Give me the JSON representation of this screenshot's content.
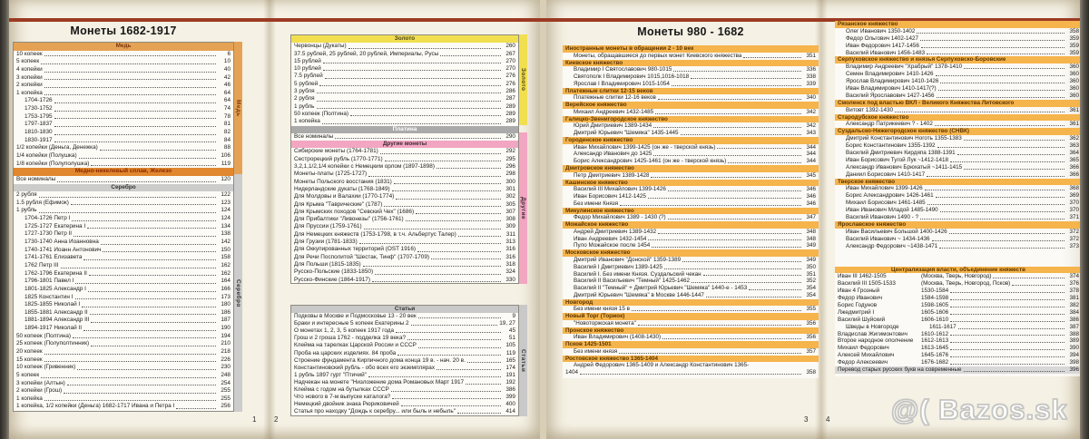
{
  "colors": {
    "copper": "#e5a254",
    "copper_iron": "#e0872f",
    "silver": "#cccccc",
    "gold": "#f1df4f",
    "platinum": "#aaaaaa",
    "other_coins_pink": "#f2a6c2",
    "articles_gray": "#c9c9c9",
    "principality_orange": "#f5b44c",
    "red_top_line": "#9c3a23"
  },
  "watermark": "@( Bazos.sk",
  "footer": {
    "p1": "1",
    "p2": "2",
    "p3": "3",
    "p4": "4"
  },
  "strips": {
    "col1_copper": "Медь",
    "col1_silver": "Серебро",
    "col2_gold": "Золото",
    "col2_other": "Другие",
    "col2_articles": "Статьи"
  },
  "page_left": {
    "title": "Монеты 1682-1917",
    "column1": {
      "items": [
        {
          "h": "Медь",
          "s": "copper"
        },
        {
          "t": "10 копеек",
          "p": "6"
        },
        {
          "t": "5 копеек",
          "p": "10"
        },
        {
          "t": "4 копейки",
          "p": "40"
        },
        {
          "t": "3 копейки",
          "p": "42"
        },
        {
          "t": "2 копейки",
          "p": "46"
        },
        {
          "t": "1 копейка",
          "p": "64"
        },
        {
          "t": "1704-1726",
          "p": "64",
          "i": 1
        },
        {
          "t": "1730-1752",
          "p": "74",
          "i": 1
        },
        {
          "t": "1753-1795",
          "p": "78",
          "i": 1
        },
        {
          "t": "1797-1837",
          "p": "81",
          "i": 1
        },
        {
          "t": "1810-1830",
          "p": "82",
          "i": 1
        },
        {
          "t": "1830-1917",
          "p": "84",
          "i": 1
        },
        {
          "t": "1/2 копейки (Деньга, Денежка)",
          "p": "88"
        },
        {
          "t": "1/4 копейки (Полушка)",
          "p": "106"
        },
        {
          "t": "1/8 копейки (Полуполушка)",
          "p": "119"
        },
        {
          "h": "Медно-никелевый сплав, Железо",
          "s": "copper2"
        },
        {
          "t": "Все номиналы",
          "p": "120"
        },
        {
          "h": "Серебро",
          "s": "silver"
        },
        {
          "t": "2 рубля",
          "p": "122"
        },
        {
          "t": "1.5 рубля (Ефимок)",
          "p": "123"
        },
        {
          "t": "1 рубль",
          "p": "124"
        },
        {
          "t": "1704-1726 Петр I",
          "p": "124",
          "i": 1
        },
        {
          "t": "1725-1727 Екатерина I",
          "p": "134",
          "i": 1
        },
        {
          "t": "1727-1730 Петр II",
          "p": "138",
          "i": 1
        },
        {
          "t": "1730-1740 Анна Иоанновна",
          "p": "142",
          "i": 1
        },
        {
          "t": "1740-1741 Иоанн Антонович",
          "p": "150",
          "i": 1
        },
        {
          "t": "1741-1761 Елизавета",
          "p": "158",
          "i": 1
        },
        {
          "t": "1762 Петр III",
          "p": "162",
          "i": 1
        },
        {
          "t": "1762-1796 Екатерина II",
          "p": "162",
          "i": 1
        },
        {
          "t": "1796-1801 Павел I",
          "p": "164",
          "i": 1
        },
        {
          "t": "1801-1825 Александр I",
          "p": "166",
          "i": 1
        },
        {
          "t": "1825 Константин I",
          "p": "173",
          "i": 1
        },
        {
          "t": "1825-1855 Николай I",
          "p": "180",
          "i": 1
        },
        {
          "t": "1855-1881 Александр II",
          "p": "186",
          "i": 1
        },
        {
          "t": "1881-1894 Александр III",
          "p": "187",
          "i": 1
        },
        {
          "t": "1894-1917 Николай II",
          "p": "190",
          "i": 1
        },
        {
          "t": "50 копеек (Полтина)",
          "p": "194"
        },
        {
          "t": "25 копеек (Полуполтинник)",
          "p": "210"
        },
        {
          "t": "20 копеек",
          "p": "218"
        },
        {
          "t": "15 копеек",
          "p": "226"
        },
        {
          "t": "10 копеек (Гривенник)",
          "p": "230"
        },
        {
          "t": "5 копеек",
          "p": "248"
        },
        {
          "t": "3 копейки (Алтын)",
          "p": "254"
        },
        {
          "t": "2 копейки (Грош)",
          "p": "255"
        },
        {
          "t": "1 копейка",
          "p": "255"
        },
        {
          "t": "1 копейка, 1/2 копейки (Деньга) 1682-1717 Ивана и Петра I",
          "p": "256"
        }
      ]
    },
    "column2a": {
      "items": [
        {
          "h": "Золото",
          "s": "gold"
        },
        {
          "t": "Червонцы (Дукаты)",
          "p": "260"
        },
        {
          "t": "37.5 рублей, 25 рублей, 20 рублей, Империалы, Русы",
          "p": "267"
        },
        {
          "t": "15 рублей",
          "p": "270"
        },
        {
          "t": "10 рублей",
          "p": "270"
        },
        {
          "t": "7.5 рублей",
          "p": "276"
        },
        {
          "t": "5 рублей",
          "p": "276"
        },
        {
          "t": "3 рубля",
          "p": "286"
        },
        {
          "t": "2 рубля",
          "p": "287"
        },
        {
          "t": "1 рубль",
          "p": "289"
        },
        {
          "t": "50 копеек (Полтина)",
          "p": "289"
        },
        {
          "t": "1 копейка",
          "p": "289"
        },
        {
          "h": "Платина",
          "s": "plat"
        },
        {
          "t": "Все номиналы",
          "p": "290"
        },
        {
          "h": "Другие монеты",
          "s": "pink"
        },
        {
          "t": "Сибирские монеты (1764-1781)",
          "p": "292"
        },
        {
          "t": "Сестрорецкий рубль (1770-1771)",
          "p": "295"
        },
        {
          "t": "3,2,1,1/2,1/4 копейки с Немецким орлом (1897-1898)",
          "p": "296"
        },
        {
          "t": "Монеты-платы (1725-1727)",
          "p": "298"
        },
        {
          "t": "Монеты Польского восстания (1831)",
          "p": "300"
        },
        {
          "t": "Нидерландские дукаты (1768-1849)",
          "p": "301"
        },
        {
          "t": "Для Молдовы и Валахии (1770-1774)",
          "p": "302"
        },
        {
          "t": "Для Крыма \"Таврические\" (1787)",
          "p": "305"
        },
        {
          "t": "Для Крымских походов \"Севский Чех\" (1686)",
          "p": "307"
        },
        {
          "t": "Для Прибалтики \"Ливонезы\" (1756-1761)",
          "p": "308"
        },
        {
          "t": "Для Пруссии (1759-1761)",
          "p": "309"
        },
        {
          "t": "Для Немецких княжеств (1753-1798, в т.ч. Альбертус Талер)",
          "p": "311"
        },
        {
          "t": "Для Грузии (1781-1833)",
          "p": "313"
        },
        {
          "t": "Для Оккупированных территорий (OST 1916)",
          "p": "316"
        },
        {
          "t": "Для Речи Посполитой \"Шестак, Тинф\" (1707-1709)",
          "p": "316"
        },
        {
          "t": "Для Польши (1815-1835)",
          "p": "318"
        },
        {
          "t": "Русско-Польские (1833-1850)",
          "p": "324"
        },
        {
          "t": "Русско-Финские (1864-1917)",
          "p": "330"
        }
      ]
    },
    "column2b": {
      "items": [
        {
          "h": "Статьи",
          "s": "gray"
        },
        {
          "t": "Подковы в Москве и Подмосковье 13 - 20 век",
          "p": "9"
        },
        {
          "t": "Браки и интересные 5 копеек Екатерины 2",
          "p": "19, 27"
        },
        {
          "t": "О монетах 1, 2, 3, 5 копеек 1917 года",
          "p": "45"
        },
        {
          "t": "Грош и 2 гроша 1762 - подделка 19 века?",
          "p": "51"
        },
        {
          "t": "Клейма на тарелках Царской России и СССР",
          "p": "105"
        },
        {
          "t": "Проба на царских изделиях. 84 проба",
          "p": "119"
        },
        {
          "t": "Строение фундамента Кирпичного дома конца 19 в. - нач. 20 в.",
          "p": "165"
        },
        {
          "t": "Константиновский рубль - обо всех его экземплярах",
          "p": "174"
        },
        {
          "t": "1 рубль 1897 гурт \"Птичий\"",
          "p": "191"
        },
        {
          "t": "Надчекан на монете \"Низложение дома Романовых Март 1917",
          "p": "192"
        },
        {
          "t": "Клейма с годом на бутылках СССР",
          "p": "386"
        },
        {
          "t": "Что нового в 7-м выпуске каталога?",
          "p": "399"
        },
        {
          "t": "Немецкий двойник знака Рюриковичей",
          "p": "400"
        },
        {
          "t": "Статья про находку \"Дождь к серебру... или быль и небыль\"",
          "p": "414"
        }
      ]
    }
  },
  "page_right": {
    "title": "Монеты 980 - 1682",
    "column3": {
      "items": [
        {
          "h": "Иностранные монеты в обращении 2 - 10 век",
          "s": "kn"
        },
        {
          "t": "Монеты, обращавшиеся до первых монет Киевского княжества",
          "p": "351"
        },
        {
          "h": "Киевское княжество",
          "s": "kn"
        },
        {
          "t": "Владимир I Святославович 980-1015",
          "p": "336"
        },
        {
          "t": "Святополк I Владимирович 1015,1016-1018",
          "p": "338"
        },
        {
          "t": "Ярослав I Владимирович 1015-1054",
          "p": "339"
        },
        {
          "h": "Платежные слитки 12-15 веков",
          "s": "kn"
        },
        {
          "t": "Платежные слитки 12-16 веков",
          "p": "340"
        },
        {
          "h": "Верейское княжество",
          "s": "kn"
        },
        {
          "t": "Михаил Андреевич 1432-1485",
          "p": "342"
        },
        {
          "h": "Галицко-Звенигородское княжество",
          "s": "kn"
        },
        {
          "t": "Юрий Дмитриевич 1389-1434",
          "p": "342"
        },
        {
          "t": "Дмитрий Юрьевич \"Шемяка\" 1435-1445",
          "p": "343"
        },
        {
          "h": "Городенское княжество",
          "s": "kn"
        },
        {
          "t": "Иван Михайлович 1399-1425 (он же - тверской князь)",
          "p": "344"
        },
        {
          "t": "Александр Иванович до 1425",
          "p": "344"
        },
        {
          "t": "Борис Александрович 1425-1461 (он же - тверской князь)",
          "p": "344"
        },
        {
          "h": "Дмитровское княжество",
          "s": "kn"
        },
        {
          "t": "Петр Дмитриевич 1389-1428",
          "p": "345"
        },
        {
          "h": "Кашинское княжество",
          "s": "kn"
        },
        {
          "t": "Василий III Михайлович 1399-1426",
          "p": "346"
        },
        {
          "t": "Иван Борисович 1412-1425",
          "p": "346"
        },
        {
          "t": "Без имени Князя",
          "p": "346"
        },
        {
          "h": "Микулинское княжество",
          "s": "kn"
        },
        {
          "t": "Федор Михайлович 1389 - 1430 (?)",
          "p": "347"
        },
        {
          "h": "Можайское княжество",
          "s": "kn"
        },
        {
          "t": "Андрей Дмитриевич 1389-1432",
          "p": "348"
        },
        {
          "t": "Иван Андреевич 1432-1454",
          "p": "348"
        },
        {
          "t": "Пуло Можайское после 1454",
          "p": "349"
        },
        {
          "h": "Московское княжество",
          "s": "kn"
        },
        {
          "t": "Дмитрий Иванович \"Донской\" 1359-1389",
          "p": "349"
        },
        {
          "t": "Василий I Дмитриевич 1389-1425",
          "p": "350"
        },
        {
          "t": "Василий I. Без имени Князя. Суздальский чекан",
          "p": "351"
        },
        {
          "t": "Василий II Васильевич \"Темный\" 1425-1462",
          "p": "352"
        },
        {
          "t": "Василий II \"Темный\" + Дмитрий Юрьевич \"Шемяка\" 1440-е - 1453",
          "p": "354"
        },
        {
          "t": "Дмитрий Юрьевич \"Шемяка\" в Москве 1446-1447",
          "p": "354"
        },
        {
          "h": "Новгород",
          "s": "kn"
        },
        {
          "t": "Без имени князя 15 в",
          "p": "355"
        },
        {
          "h": "Новый Торг (Торжок)",
          "s": "kn"
        },
        {
          "t": "\"Новоторжская монета\"",
          "p": "356"
        },
        {
          "h": "Пронское княжество",
          "s": "kn"
        },
        {
          "t": "Иван Владимирович (1408-1430)",
          "p": "356"
        },
        {
          "h": "Псков 1425-1501",
          "s": "kn"
        },
        {
          "t": "Без имени князя",
          "p": "357"
        },
        {
          "h": "Ростовское княжество 1365-1404",
          "s": "kn"
        },
        {
          "t": "Андрей Федорович 1365-1409 и Александр Константинович 1365-",
          "p": "",
          "nd": true
        },
        {
          "t": "1404",
          "p": "358",
          "i": 0
        }
      ]
    },
    "column4": {
      "items": [
        {
          "h": "Рязанское княжество",
          "s": "kn"
        },
        {
          "t": "Олег Иванович 1350-1402",
          "p": "358"
        },
        {
          "t": "Федор Ольгович 1402-1427",
          "p": "359"
        },
        {
          "t": "Иван Федорович 1417-1456",
          "p": "359"
        },
        {
          "t": "Василий Иванович 1456-1483",
          "p": "359"
        },
        {
          "h": "Серпуховское княжество и князья Серпуховско-Боровские",
          "s": "kn"
        },
        {
          "t": "Владимир Андреевич \"Храбрый\" 1378-1410",
          "p": "360"
        },
        {
          "t": "Семен Владимирович 1410-1426",
          "p": "360"
        },
        {
          "t": "Ярослав Владимирович 1410-1426",
          "p": "360"
        },
        {
          "t": "Иван Владимирович 1410-1417(?)",
          "p": "360"
        },
        {
          "t": "Василий Ярославович 1427-1456",
          "p": "360"
        },
        {
          "h": "Смоленск под властью ВКЛ - Великого Княжества Литовского",
          "s": "kn"
        },
        {
          "t": "Витовт 1392-1430",
          "p": "361"
        },
        {
          "h": "Стародубское княжество",
          "s": "kn"
        },
        {
          "t": "Александр Патрикеевич ? - 1402",
          "p": "361"
        },
        {
          "h": "Суздальско-Нижегородское княжество (СНВК)",
          "s": "kn"
        },
        {
          "t": "Дмитрий Константинович Ноготь 1355-1383",
          "p": "362"
        },
        {
          "t": "Борис Константинович 1355-1392",
          "p": "363"
        },
        {
          "t": "Василий Дмитриевич Кирдяпа 1388-1391",
          "p": "364"
        },
        {
          "t": "Иван Борисович Тугой Лук ~1412-1418",
          "p": "365"
        },
        {
          "t": "Александр Иванович Брюхатый ~1411-1415",
          "p": "366"
        },
        {
          "t": "Даниил Борисович 1410-1417",
          "p": "366"
        },
        {
          "h": "Тверское княжество",
          "s": "kn"
        },
        {
          "t": "Иван Михайлович 1399-1426",
          "p": "368"
        },
        {
          "t": "Борис Александрович 1426-1461",
          "p": "369"
        },
        {
          "t": "Михаил Борисович 1461-1485",
          "p": "370"
        },
        {
          "t": "Иван Иванович Младой 1485-1490",
          "p": "370"
        },
        {
          "t": "Василий Иванович 1490 - ?",
          "p": "371"
        },
        {
          "h": "Ярославское княжество",
          "s": "kn"
        },
        {
          "t": "Иван Васильевич Большой 1400-1426",
          "p": "372"
        },
        {
          "t": "Василий Иванович ~ 1434-1436",
          "p": "372"
        },
        {
          "t": "Александр Федорович ~1438-1471",
          "p": "373"
        },
        {
          "g": 18
        },
        {
          "h": "Централизация власти, объединение княжеств",
          "s": "central"
        },
        {
          "n": "Иван III 1462-1505",
          "y": "(Москва, Тверь, Новгород)",
          "p": "374"
        },
        {
          "n": "Василий III 1505-1533",
          "y": "(Москва, Тверь, Новгород, Псков)",
          "p": "376"
        },
        {
          "n": "Иван 4 Грозный",
          "y": "1530-1584",
          "p": "378"
        },
        {
          "n": "Федор Иванович",
          "y": "1584-1598",
          "p": "381"
        },
        {
          "n": "Борис Годунов",
          "y": "1598-1605",
          "p": "382"
        },
        {
          "n": "Лжедмитрий I",
          "y": "1605-1606",
          "p": "384"
        },
        {
          "n": "Василий Шуйский",
          "y": "1606-1610",
          "p": "386"
        },
        {
          "n": "Шведы в Новгороде",
          "y": "1611-1617",
          "p": "387",
          "i": 1
        },
        {
          "n": "Владислав Жигимонтович",
          "y": "1610-1612",
          "p": "388"
        },
        {
          "n": "Второе народное ополчение",
          "y": "1612-1613",
          "p": "389"
        },
        {
          "n": "Михаил Федорович",
          "y": "1613-1645",
          "p": "390"
        },
        {
          "n": "Алексей Михайлович",
          "y": "1645-1676",
          "p": "394"
        },
        {
          "n": "Федор Алексеевич",
          "y": "1676-1682",
          "p": "398"
        },
        {
          "t": "Перевод старых русских букв на современные",
          "p": "396",
          "s": "grayrow",
          "i": 0
        }
      ]
    }
  }
}
